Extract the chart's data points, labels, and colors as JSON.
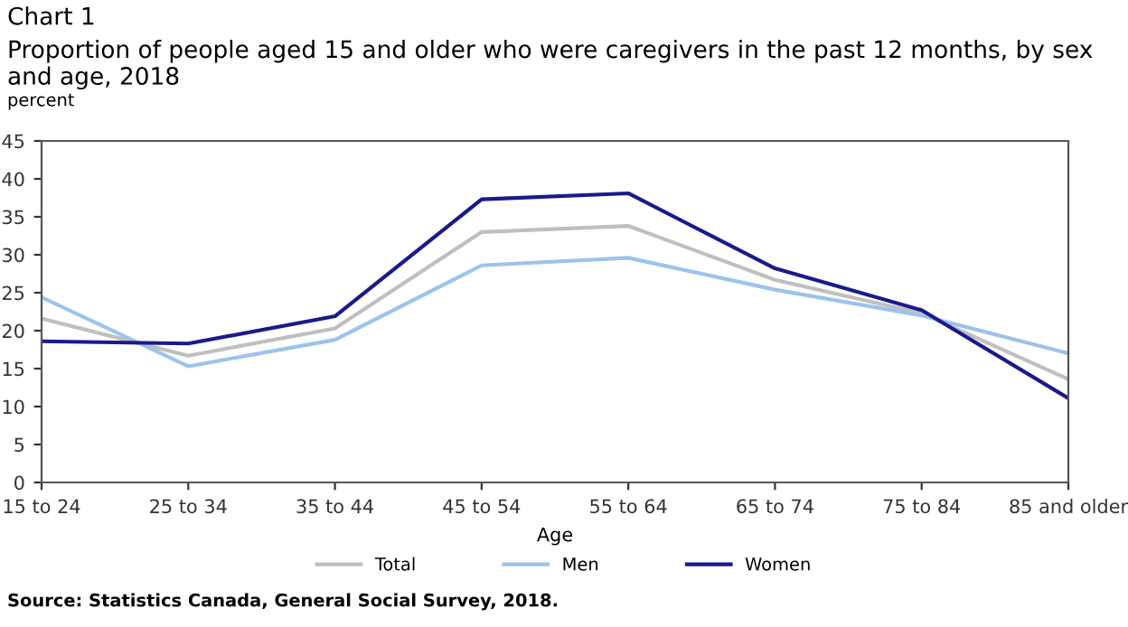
{
  "chart_data": {
    "type": "line",
    "title": "Chart 1",
    "subtitle": "Proportion of people aged 15 and older who were caregivers in the past 12 months, by sex and age, 2018",
    "xlabel": "Age",
    "ylabel": "percent",
    "categories": [
      "15 to 24",
      "25 to 34",
      "35 to 44",
      "45 to 54",
      "55 to 64",
      "65 to 74",
      "75 to 84",
      "85 and older"
    ],
    "series": [
      {
        "name": "Total",
        "color": "#bfbfbf",
        "values": [
          21.6,
          16.7,
          20.3,
          33.0,
          33.8,
          26.7,
          22.3,
          13.6
        ]
      },
      {
        "name": "Men",
        "color": "#9cc3ea",
        "values": [
          24.4,
          15.3,
          18.8,
          28.6,
          29.6,
          25.4,
          22.0,
          17.0
        ]
      },
      {
        "name": "Women",
        "color": "#1a1a8c",
        "values": [
          18.6,
          18.3,
          21.9,
          37.3,
          38.1,
          28.2,
          22.7,
          11.1
        ]
      }
    ],
    "ylim": [
      0,
      45
    ],
    "yticks": [
      0,
      5,
      10,
      15,
      20,
      25,
      30,
      35,
      40,
      45
    ],
    "grid": false,
    "legend": "bottom",
    "marker": "none",
    "line_style": "solid",
    "annotations": [
      "Source: Statistics Canada, General Social Survey, 2018."
    ]
  }
}
